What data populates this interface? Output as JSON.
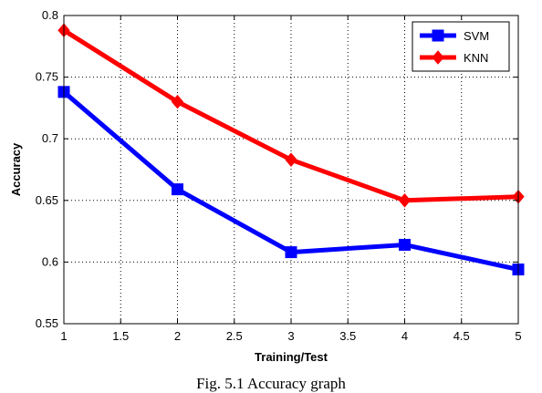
{
  "caption": "Fig. 5.1 Accuracy graph",
  "chart_data": {
    "type": "line",
    "title": "",
    "xlabel": "Training/Test",
    "ylabel": "Accuracy",
    "x": [
      1,
      2,
      3,
      4,
      5
    ],
    "xlim": [
      1,
      5
    ],
    "ylim": [
      0.55,
      0.8
    ],
    "xticks": [
      "1",
      "1.5",
      "2",
      "2.5",
      "3",
      "3.5",
      "4",
      "4.5",
      "5"
    ],
    "yticks": [
      "0.55",
      "0.6",
      "0.65",
      "0.7",
      "0.75",
      "0.8"
    ],
    "grid": true,
    "legend_position": "top-right",
    "series": [
      {
        "name": "SVM",
        "color": "#0000ff",
        "marker": "square",
        "values": [
          0.738,
          0.659,
          0.608,
          0.614,
          0.594
        ]
      },
      {
        "name": "KNN",
        "color": "#ff0000",
        "marker": "diamond",
        "values": [
          0.788,
          0.73,
          0.683,
          0.65,
          0.653
        ]
      }
    ]
  }
}
